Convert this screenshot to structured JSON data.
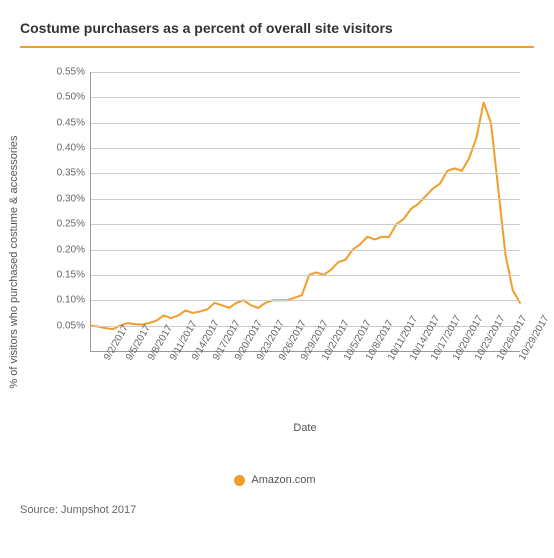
{
  "title": "Costume purchasers as a percent of overall site visitors",
  "chart": {
    "type": "line",
    "y_axis_label": "% of visitors who purchased costume & accessories",
    "x_axis_label": "Date",
    "xlim_index": [
      0,
      59
    ],
    "ylim": [
      0,
      0.55
    ],
    "ytick_step": 0.05,
    "ytick_format": "percent2",
    "grid_color": "#cccccc",
    "axis_color": "#999999",
    "background_color": "#ffffff",
    "line_color": "#f39c2a",
    "line_width": 2,
    "header_rule_color": "#f39c2a",
    "label_fontsize_pt": 11,
    "tick_fontsize_pt": 10,
    "title_fontsize_pt": 14,
    "yticks": [
      {
        "v": 0.05,
        "label": "0.05%"
      },
      {
        "v": 0.1,
        "label": "0.10%"
      },
      {
        "v": 0.15,
        "label": "0.15%"
      },
      {
        "v": 0.2,
        "label": "0.20%"
      },
      {
        "v": 0.25,
        "label": "0.25%"
      },
      {
        "v": 0.3,
        "label": "0.30%"
      },
      {
        "v": 0.35,
        "label": "0.35%"
      },
      {
        "v": 0.4,
        "label": "0.40%"
      },
      {
        "v": 0.45,
        "label": "0.45%"
      },
      {
        "v": 0.5,
        "label": "0.50%"
      },
      {
        "v": 0.55,
        "label": "0.55%"
      }
    ],
    "xticks": [
      {
        "i": 1,
        "label": "9/2/2017"
      },
      {
        "i": 4,
        "label": "9/5/2017"
      },
      {
        "i": 7,
        "label": "9/8/2017"
      },
      {
        "i": 10,
        "label": "9/11/2017"
      },
      {
        "i": 13,
        "label": "9/14/2017"
      },
      {
        "i": 16,
        "label": "9/17/2017"
      },
      {
        "i": 19,
        "label": "9/20/2017"
      },
      {
        "i": 22,
        "label": "9/23/2017"
      },
      {
        "i": 25,
        "label": "9/26/2017"
      },
      {
        "i": 28,
        "label": "9/29/2017"
      },
      {
        "i": 31,
        "label": "10/2/2017"
      },
      {
        "i": 34,
        "label": "10/5/2017"
      },
      {
        "i": 37,
        "label": "10/8/2017"
      },
      {
        "i": 40,
        "label": "10/11/2017"
      },
      {
        "i": 43,
        "label": "10/14/2017"
      },
      {
        "i": 46,
        "label": "10/17/2017"
      },
      {
        "i": 49,
        "label": "10/20/2017"
      },
      {
        "i": 52,
        "label": "10/23/2017"
      },
      {
        "i": 55,
        "label": "10/26/2017"
      },
      {
        "i": 58,
        "label": "10/29/2017"
      }
    ],
    "series": [
      {
        "name": "Amazon.com",
        "color": "#f39c2a",
        "values": [
          0.05,
          0.048,
          0.045,
          0.043,
          0.05,
          0.055,
          0.053,
          0.052,
          0.055,
          0.06,
          0.07,
          0.065,
          0.07,
          0.08,
          0.075,
          0.078,
          0.082,
          0.095,
          0.09,
          0.085,
          0.095,
          0.1,
          0.09,
          0.085,
          0.095,
          0.1,
          0.1,
          0.1,
          0.105,
          0.11,
          0.15,
          0.155,
          0.15,
          0.16,
          0.175,
          0.18,
          0.2,
          0.21,
          0.225,
          0.22,
          0.225,
          0.225,
          0.25,
          0.26,
          0.28,
          0.29,
          0.305,
          0.32,
          0.33,
          0.355,
          0.36,
          0.355,
          0.38,
          0.42,
          0.49,
          0.45,
          0.32,
          0.19,
          0.12,
          0.095
        ]
      }
    ]
  },
  "legend": {
    "items": [
      {
        "label": "Amazon.com",
        "color": "#f39c2a"
      }
    ]
  },
  "source": "Source: Jumpshot 2017"
}
